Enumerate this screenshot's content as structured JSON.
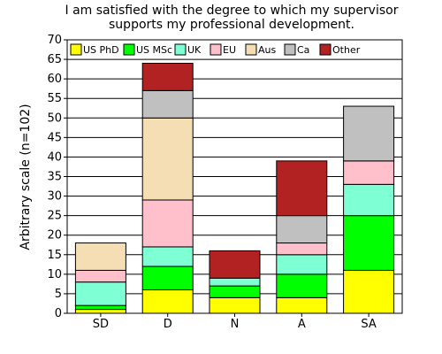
{
  "chart_data": {
    "type": "bar",
    "stacked": true,
    "title_lines": [
      "I am satisfied with the degree to which my supervisor",
      "supports my professional development."
    ],
    "xlabel": "",
    "ylabel": "Arbitrary scale (n=102)",
    "ylim": [
      0,
      70
    ],
    "yticks": [
      0,
      5,
      10,
      15,
      20,
      25,
      30,
      35,
      40,
      45,
      50,
      55,
      60,
      65,
      70
    ],
    "grid": true,
    "legend_position": "top",
    "categories": [
      "SD",
      "D",
      "N",
      "A",
      "SA"
    ],
    "series": [
      {
        "name": "US PhD",
        "color": "#ffff00",
        "values": [
          1,
          6,
          4,
          4,
          11
        ]
      },
      {
        "name": "US MSc",
        "color": "#00ff00",
        "values": [
          1,
          6,
          3,
          6,
          14
        ]
      },
      {
        "name": "UK",
        "color": "#7fffd4",
        "values": [
          6,
          5,
          2,
          5,
          8
        ]
      },
      {
        "name": "EU",
        "color": "#ffc0cb",
        "values": [
          3,
          12,
          0,
          3,
          6
        ]
      },
      {
        "name": "Aus",
        "color": "#f5deb3",
        "values": [
          7,
          21,
          0,
          0,
          0
        ]
      },
      {
        "name": "Ca",
        "color": "#c0c0c0",
        "values": [
          0,
          7,
          0,
          7,
          14
        ]
      },
      {
        "name": "Other",
        "color": "#b22222",
        "values": [
          0,
          7,
          7,
          14,
          0
        ]
      }
    ]
  }
}
